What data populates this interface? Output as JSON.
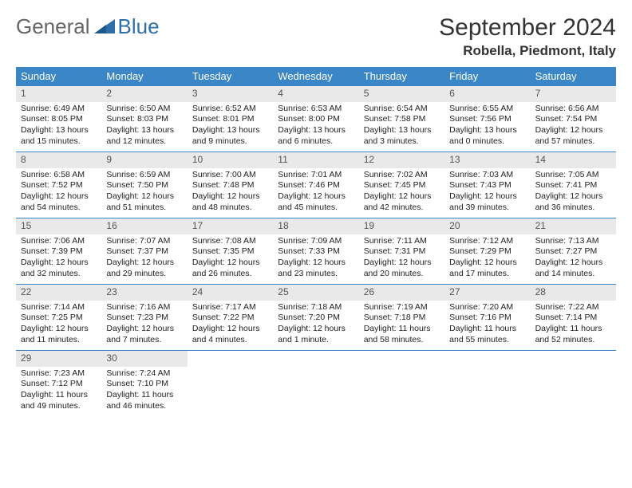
{
  "logo": {
    "part1": "General",
    "part2": "Blue"
  },
  "title": "September 2024",
  "location": "Robella, Piedmont, Italy",
  "colors": {
    "header_bg": "#3b86c6",
    "header_text": "#ffffff",
    "daynum_bg": "#e9e9e9",
    "week_border": "#3b86c6",
    "text": "#222222",
    "logo_gray": "#666666",
    "logo_blue": "#2f6fa7"
  },
  "weekday_labels": [
    "Sunday",
    "Monday",
    "Tuesday",
    "Wednesday",
    "Thursday",
    "Friday",
    "Saturday"
  ],
  "days": [
    {
      "n": "1",
      "sunrise": "6:49 AM",
      "sunset": "8:05 PM",
      "daylight": "13 hours and 15 minutes."
    },
    {
      "n": "2",
      "sunrise": "6:50 AM",
      "sunset": "8:03 PM",
      "daylight": "13 hours and 12 minutes."
    },
    {
      "n": "3",
      "sunrise": "6:52 AM",
      "sunset": "8:01 PM",
      "daylight": "13 hours and 9 minutes."
    },
    {
      "n": "4",
      "sunrise": "6:53 AM",
      "sunset": "8:00 PM",
      "daylight": "13 hours and 6 minutes."
    },
    {
      "n": "5",
      "sunrise": "6:54 AM",
      "sunset": "7:58 PM",
      "daylight": "13 hours and 3 minutes."
    },
    {
      "n": "6",
      "sunrise": "6:55 AM",
      "sunset": "7:56 PM",
      "daylight": "13 hours and 0 minutes."
    },
    {
      "n": "7",
      "sunrise": "6:56 AM",
      "sunset": "7:54 PM",
      "daylight": "12 hours and 57 minutes."
    },
    {
      "n": "8",
      "sunrise": "6:58 AM",
      "sunset": "7:52 PM",
      "daylight": "12 hours and 54 minutes."
    },
    {
      "n": "9",
      "sunrise": "6:59 AM",
      "sunset": "7:50 PM",
      "daylight": "12 hours and 51 minutes."
    },
    {
      "n": "10",
      "sunrise": "7:00 AM",
      "sunset": "7:48 PM",
      "daylight": "12 hours and 48 minutes."
    },
    {
      "n": "11",
      "sunrise": "7:01 AM",
      "sunset": "7:46 PM",
      "daylight": "12 hours and 45 minutes."
    },
    {
      "n": "12",
      "sunrise": "7:02 AM",
      "sunset": "7:45 PM",
      "daylight": "12 hours and 42 minutes."
    },
    {
      "n": "13",
      "sunrise": "7:03 AM",
      "sunset": "7:43 PM",
      "daylight": "12 hours and 39 minutes."
    },
    {
      "n": "14",
      "sunrise": "7:05 AM",
      "sunset": "7:41 PM",
      "daylight": "12 hours and 36 minutes."
    },
    {
      "n": "15",
      "sunrise": "7:06 AM",
      "sunset": "7:39 PM",
      "daylight": "12 hours and 32 minutes."
    },
    {
      "n": "16",
      "sunrise": "7:07 AM",
      "sunset": "7:37 PM",
      "daylight": "12 hours and 29 minutes."
    },
    {
      "n": "17",
      "sunrise": "7:08 AM",
      "sunset": "7:35 PM",
      "daylight": "12 hours and 26 minutes."
    },
    {
      "n": "18",
      "sunrise": "7:09 AM",
      "sunset": "7:33 PM",
      "daylight": "12 hours and 23 minutes."
    },
    {
      "n": "19",
      "sunrise": "7:11 AM",
      "sunset": "7:31 PM",
      "daylight": "12 hours and 20 minutes."
    },
    {
      "n": "20",
      "sunrise": "7:12 AM",
      "sunset": "7:29 PM",
      "daylight": "12 hours and 17 minutes."
    },
    {
      "n": "21",
      "sunrise": "7:13 AM",
      "sunset": "7:27 PM",
      "daylight": "12 hours and 14 minutes."
    },
    {
      "n": "22",
      "sunrise": "7:14 AM",
      "sunset": "7:25 PM",
      "daylight": "12 hours and 11 minutes."
    },
    {
      "n": "23",
      "sunrise": "7:16 AM",
      "sunset": "7:23 PM",
      "daylight": "12 hours and 7 minutes."
    },
    {
      "n": "24",
      "sunrise": "7:17 AM",
      "sunset": "7:22 PM",
      "daylight": "12 hours and 4 minutes."
    },
    {
      "n": "25",
      "sunrise": "7:18 AM",
      "sunset": "7:20 PM",
      "daylight": "12 hours and 1 minute."
    },
    {
      "n": "26",
      "sunrise": "7:19 AM",
      "sunset": "7:18 PM",
      "daylight": "11 hours and 58 minutes."
    },
    {
      "n": "27",
      "sunrise": "7:20 AM",
      "sunset": "7:16 PM",
      "daylight": "11 hours and 55 minutes."
    },
    {
      "n": "28",
      "sunrise": "7:22 AM",
      "sunset": "7:14 PM",
      "daylight": "11 hours and 52 minutes."
    },
    {
      "n": "29",
      "sunrise": "7:23 AM",
      "sunset": "7:12 PM",
      "daylight": "11 hours and 49 minutes."
    },
    {
      "n": "30",
      "sunrise": "7:24 AM",
      "sunset": "7:10 PM",
      "daylight": "11 hours and 46 minutes."
    }
  ],
  "labels": {
    "sunrise": "Sunrise:",
    "sunset": "Sunset:",
    "daylight": "Daylight:"
  },
  "layout": {
    "start_weekday": 0,
    "weeks": 5,
    "cols": 7
  }
}
